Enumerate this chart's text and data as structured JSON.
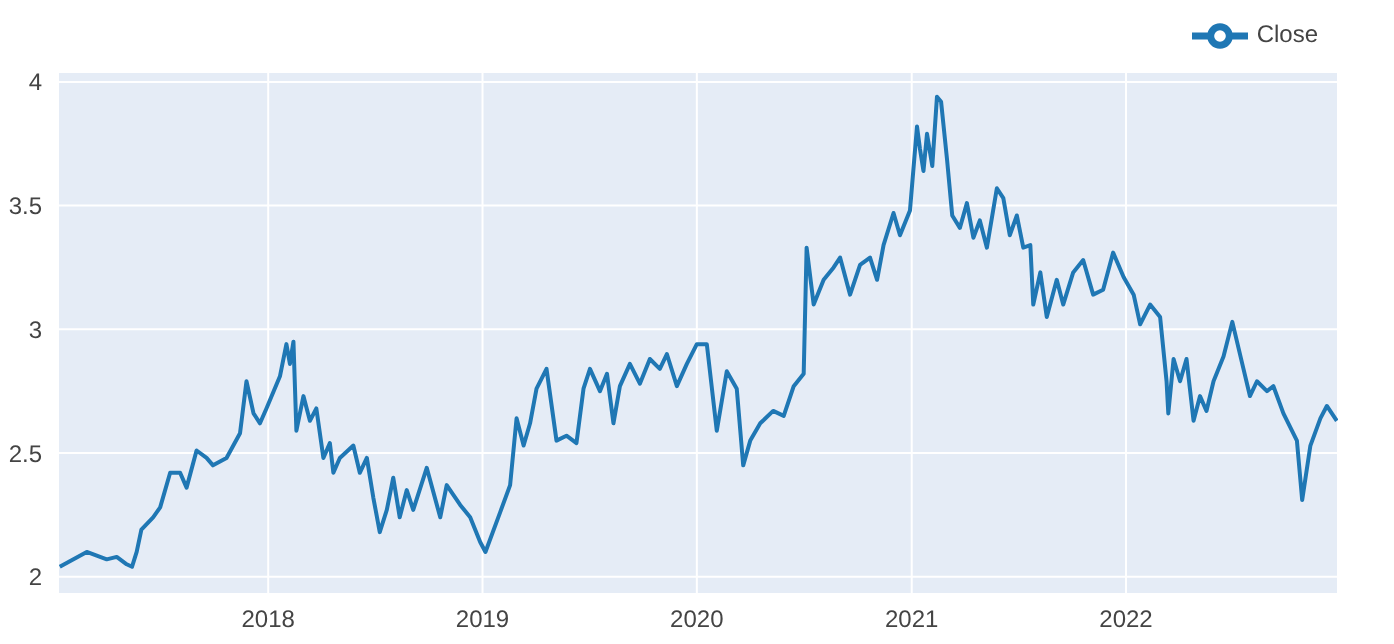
{
  "chart_data": {
    "type": "line",
    "xlim": [
      "2017-01-08",
      "2022-12-28"
    ],
    "xticks": [
      {
        "value": "2018-01-01",
        "label": "2018"
      },
      {
        "value": "2019-01-01",
        "label": "2019"
      },
      {
        "value": "2020-01-01",
        "label": "2020"
      },
      {
        "value": "2021-01-01",
        "label": "2021"
      },
      {
        "value": "2022-01-01",
        "label": "2022"
      }
    ],
    "ylim": [
      1.93,
      4.04
    ],
    "yticks": [
      2,
      2.5,
      3,
      3.5,
      4
    ],
    "grid": true,
    "legend": "top right",
    "marker": "none",
    "line_style": "solid",
    "x": [
      "2017-01-11",
      "2017-02-26",
      "2017-04-01",
      "2017-04-18",
      "2017-05-05",
      "2017-05-14",
      "2017-05-22",
      "2017-05-30",
      "2017-06-19",
      "2017-07-01",
      "2017-07-18",
      "2017-08-04",
      "2017-08-15",
      "2017-09-01",
      "2017-09-18",
      "2017-09-29",
      "2017-10-22",
      "2017-11-14",
      "2017-11-25",
      "2017-12-07",
      "2017-12-18",
      "2017-12-29",
      "2018-01-21",
      "2018-02-01",
      "2018-02-07",
      "2018-02-13",
      "2018-02-18",
      "2018-03-02",
      "2018-03-13",
      "2018-03-24",
      "2018-04-05",
      "2018-04-16",
      "2018-04-22",
      "2018-05-03",
      "2018-05-26",
      "2018-06-06",
      "2018-06-18",
      "2018-06-29",
      "2018-07-10",
      "2018-07-22",
      "2018-08-02",
      "2018-08-13",
      "2018-08-25",
      "2018-09-05",
      "2018-09-28",
      "2018-10-21",
      "2018-11-01",
      "2018-11-24",
      "2018-12-11",
      "2018-12-28",
      "2019-01-06",
      "2019-01-31",
      "2019-02-17",
      "2019-02-28",
      "2019-03-12",
      "2019-03-23",
      "2019-04-03",
      "2019-04-20",
      "2019-05-07",
      "2019-05-24",
      "2019-06-10",
      "2019-06-22",
      "2019-07-03",
      "2019-07-20",
      "2019-08-01",
      "2019-08-12",
      "2019-08-23",
      "2019-09-09",
      "2019-09-26",
      "2019-10-13",
      "2019-10-30",
      "2019-11-11",
      "2019-11-28",
      "2019-12-15",
      "2020-01-01",
      "2020-01-18",
      "2020-02-04",
      "2020-02-21",
      "2020-03-09",
      "2020-03-20",
      "2020-04-01",
      "2020-04-18",
      "2020-05-10",
      "2020-05-28",
      "2020-06-14",
      "2020-07-01",
      "2020-07-06",
      "2020-07-18",
      "2020-08-04",
      "2020-08-21",
      "2020-09-01",
      "2020-09-18",
      "2020-10-05",
      "2020-10-22",
      "2020-11-03",
      "2020-11-14",
      "2020-12-01",
      "2020-12-12",
      "2020-12-29",
      "2021-01-10",
      "2021-01-15",
      "2021-01-21",
      "2021-01-27",
      "2021-02-05",
      "2021-02-13",
      "2021-02-20",
      "2021-03-02",
      "2021-03-11",
      "2021-03-24",
      "2021-04-05",
      "2021-04-16",
      "2021-04-27",
      "2021-05-09",
      "2021-05-26",
      "2021-06-06",
      "2021-06-17",
      "2021-06-29",
      "2021-07-10",
      "2021-07-22",
      "2021-07-27",
      "2021-08-08",
      "2021-08-19",
      "2021-09-05",
      "2021-09-16",
      "2021-10-03",
      "2021-10-20",
      "2021-11-06",
      "2021-11-23",
      "2021-12-10",
      "2021-12-28",
      "2022-01-14",
      "2022-01-25",
      "2022-02-11",
      "2022-02-28",
      "2022-03-11",
      "2022-03-14",
      "2022-03-23",
      "2022-04-03",
      "2022-04-14",
      "2022-04-26",
      "2022-05-07",
      "2022-05-18",
      "2022-05-30",
      "2022-06-16",
      "2022-07-01",
      "2022-07-20",
      "2022-07-31",
      "2022-08-12",
      "2022-08-29",
      "2022-09-09",
      "2022-09-26",
      "2022-10-19",
      "2022-10-28",
      "2022-11-11",
      "2022-11-28",
      "2022-12-09",
      "2022-12-26"
    ],
    "series": [
      {
        "name": "Close",
        "color": "#1f77b4",
        "values": [
          2.04,
          2.1,
          2.07,
          2.08,
          2.05,
          2.04,
          2.1,
          2.19,
          2.24,
          2.28,
          2.42,
          2.42,
          2.36,
          2.51,
          2.48,
          2.45,
          2.48,
          2.58,
          2.79,
          2.66,
          2.62,
          2.68,
          2.81,
          2.94,
          2.86,
          2.95,
          2.59,
          2.73,
          2.63,
          2.68,
          2.48,
          2.54,
          2.42,
          2.48,
          2.53,
          2.42,
          2.48,
          2.32,
          2.18,
          2.27,
          2.4,
          2.24,
          2.35,
          2.27,
          2.44,
          2.24,
          2.37,
          2.29,
          2.24,
          2.14,
          2.1,
          2.26,
          2.37,
          2.64,
          2.53,
          2.62,
          2.76,
          2.84,
          2.55,
          2.57,
          2.54,
          2.76,
          2.84,
          2.75,
          2.82,
          2.62,
          2.77,
          2.86,
          2.78,
          2.88,
          2.84,
          2.9,
          2.77,
          2.86,
          2.94,
          2.94,
          2.59,
          2.83,
          2.76,
          2.45,
          2.55,
          2.62,
          2.67,
          2.65,
          2.77,
          2.82,
          3.33,
          3.1,
          3.2,
          3.25,
          3.29,
          3.14,
          3.26,
          3.29,
          3.2,
          3.34,
          3.47,
          3.38,
          3.48,
          3.82,
          3.73,
          3.64,
          3.79,
          3.66,
          3.94,
          3.92,
          3.69,
          3.46,
          3.41,
          3.51,
          3.37,
          3.44,
          3.33,
          3.57,
          3.53,
          3.38,
          3.46,
          3.33,
          3.34,
          3.1,
          3.23,
          3.05,
          3.2,
          3.1,
          3.23,
          3.28,
          3.14,
          3.16,
          3.31,
          3.21,
          3.14,
          3.02,
          3.1,
          3.05,
          2.79,
          2.66,
          2.88,
          2.79,
          2.88,
          2.63,
          2.73,
          2.67,
          2.79,
          2.89,
          3.03,
          2.84,
          2.73,
          2.79,
          2.75,
          2.77,
          2.66,
          2.55,
          2.31,
          2.53,
          2.64,
          2.69,
          2.63
        ]
      }
    ]
  }
}
